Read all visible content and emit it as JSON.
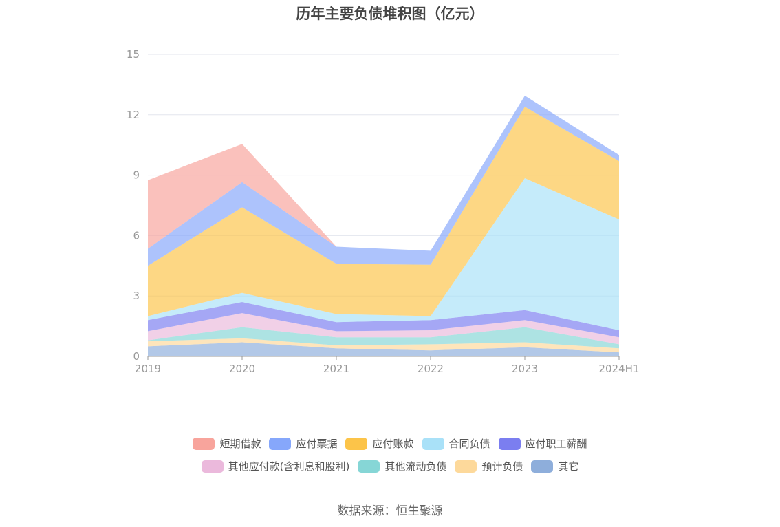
{
  "title": "历年主要负债堆积图（亿元）",
  "source": "数据来源：恒生聚源",
  "chart_data": {
    "type": "area",
    "stacked": true,
    "categories": [
      "2019",
      "2020",
      "2021",
      "2022",
      "2023",
      "2024H1"
    ],
    "ylim": [
      0,
      15
    ],
    "yticks": [
      0,
      3,
      6,
      9,
      12,
      15
    ],
    "grid": true,
    "legend_position": "bottom",
    "series": [
      {
        "name": "其它",
        "color": "#8eaedb",
        "values": [
          0.5,
          0.7,
          0.4,
          0.3,
          0.45,
          0.2
        ]
      },
      {
        "name": "预计负债",
        "color": "#fdd99b",
        "values": [
          0.25,
          0.2,
          0.15,
          0.3,
          0.25,
          0.2
        ]
      },
      {
        "name": "其他流动负债",
        "color": "#86d6d6",
        "values": [
          0.05,
          0.55,
          0.4,
          0.35,
          0.75,
          0.2
        ]
      },
      {
        "name": "其他应付款(含利息和股利)",
        "color": "#ebb9dc",
        "values": [
          0.45,
          0.7,
          0.3,
          0.35,
          0.35,
          0.35
        ]
      },
      {
        "name": "应付职工薪酬",
        "color": "#7b7ef0",
        "values": [
          0.55,
          0.55,
          0.45,
          0.5,
          0.5,
          0.35
        ]
      },
      {
        "name": "合同负债",
        "color": "#a9e1f8",
        "values": [
          0.2,
          0.45,
          0.4,
          0.2,
          6.55,
          5.5
        ]
      },
      {
        "name": "应付账款",
        "color": "#fcc449",
        "values": [
          2.5,
          4.25,
          2.5,
          2.55,
          3.55,
          2.9
        ]
      },
      {
        "name": "应付票据",
        "color": "#86a7fb",
        "values": [
          0.85,
          1.25,
          0.85,
          0.7,
          0.55,
          0.3
        ]
      },
      {
        "name": "短期借款",
        "color": "#f8a49c",
        "values": [
          3.4,
          1.9,
          0.0,
          0.0,
          0.0,
          0.0
        ]
      }
    ]
  },
  "legend": {
    "rows": [
      [
        "短期借款",
        "应付票据",
        "应付账款",
        "合同负债",
        "应付职工薪酬"
      ],
      [
        "其他应付款(含利息和股利)",
        "其他流动负债",
        "预计负债",
        "其它"
      ]
    ]
  }
}
